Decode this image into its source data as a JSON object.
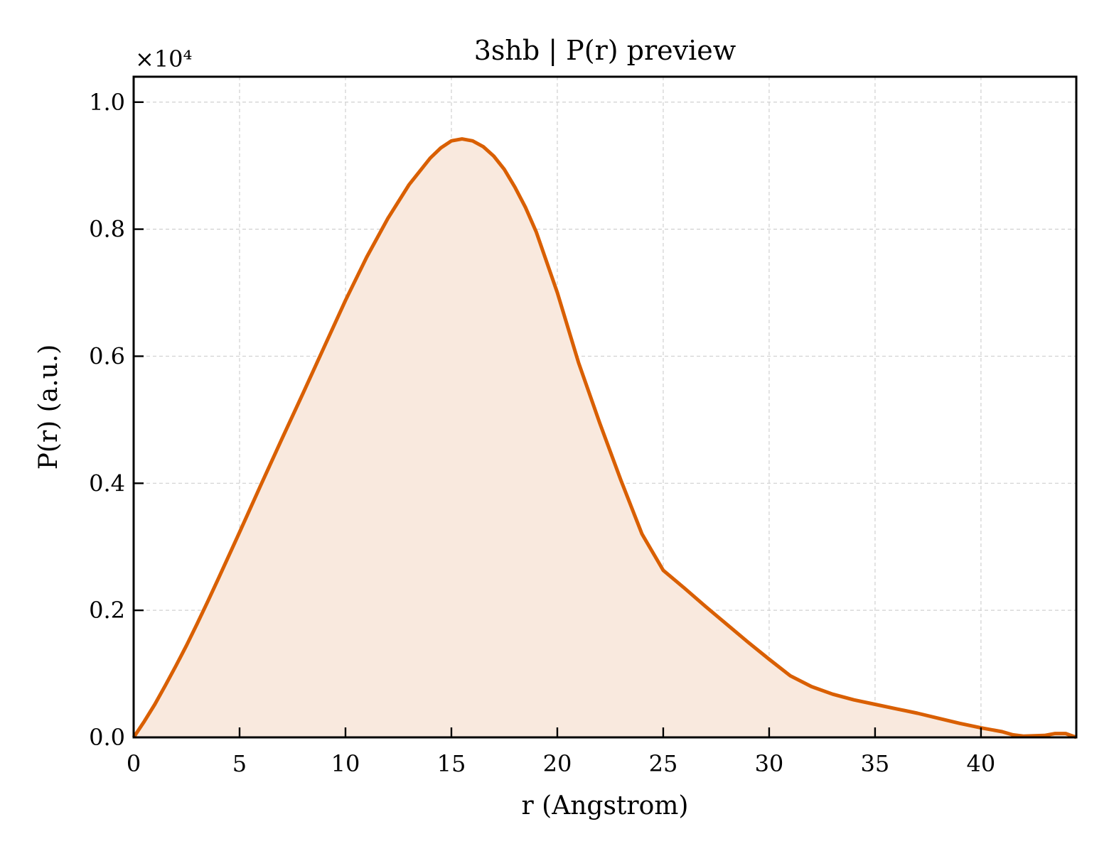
{
  "chart_data": {
    "type": "line",
    "title": "3shb | P(r) preview",
    "xlabel": "r (Angstrom)",
    "ylabel": "P(r) (a.u.)",
    "y_offset_label": "×10⁴",
    "xlim": [
      0,
      44.5
    ],
    "ylim": [
      0,
      10400
    ],
    "x_ticks": [
      0,
      5,
      10,
      15,
      20,
      25,
      30,
      35,
      40
    ],
    "x_tick_labels": [
      "0",
      "5",
      "10",
      "15",
      "20",
      "25",
      "30",
      "35",
      "40"
    ],
    "y_ticks": [
      0,
      2000,
      4000,
      6000,
      8000,
      10000
    ],
    "y_tick_labels": [
      "0.0",
      "0.2",
      "0.4",
      "0.6",
      "0.8",
      "1.0"
    ],
    "grid": true,
    "colors": {
      "line": "#d95f02",
      "fill": "#f9e9de"
    },
    "series": [
      {
        "x": [
          0,
          0.5,
          1,
          1.5,
          2,
          2.5,
          3,
          3.5,
          4,
          5,
          6,
          7,
          8,
          9,
          10,
          11,
          12,
          13,
          14,
          14.5,
          15,
          15.5,
          16,
          16.5,
          17,
          17.5,
          18,
          18.5,
          19,
          20,
          21,
          22,
          23,
          24,
          25,
          26,
          27,
          28,
          29,
          30,
          31,
          32,
          33,
          34,
          35,
          36,
          37,
          38,
          39,
          40,
          41,
          41.5,
          42,
          43,
          43.5,
          44,
          44.5
        ],
        "y": [
          0,
          250,
          520,
          820,
          1130,
          1450,
          1790,
          2140,
          2500,
          3230,
          3970,
          4700,
          5420,
          6150,
          6880,
          7560,
          8170,
          8700,
          9120,
          9280,
          9390,
          9420,
          9390,
          9300,
          9150,
          8940,
          8660,
          8340,
          7960,
          7000,
          5900,
          4950,
          4050,
          3200,
          2630,
          2350,
          2060,
          1780,
          1500,
          1230,
          970,
          800,
          680,
          590,
          520,
          450,
          380,
          300,
          220,
          150,
          90,
          40,
          20,
          30,
          60,
          60,
          0
        ]
      }
    ]
  }
}
